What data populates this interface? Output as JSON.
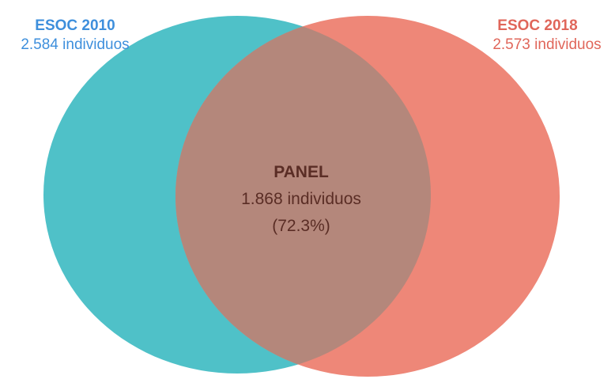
{
  "diagram": {
    "left_set": {
      "title": "ESOC 2010",
      "subtitle": "2.584 individuos",
      "fill_color": "#4fc1c8",
      "label_color": "#3e8fdc"
    },
    "right_set": {
      "title": "ESOC 2018",
      "subtitle": "2.573 individuos",
      "fill_color": "#ee8778",
      "label_color": "#e0665a"
    },
    "intersection": {
      "title": "PANEL",
      "count": "1.868 individuos",
      "percent": "(72.3%)",
      "fill_color": "#b4877b",
      "text_color": "#5a2d25"
    }
  },
  "chart_data": {
    "type": "venn",
    "sets": [
      {
        "name": "ESOC 2010",
        "size": 2584
      },
      {
        "name": "ESOC 2018",
        "size": 2573
      }
    ],
    "intersection": {
      "sets": [
        "ESOC 2010",
        "ESOC 2018"
      ],
      "size": 1868,
      "percent": 72.3
    }
  }
}
